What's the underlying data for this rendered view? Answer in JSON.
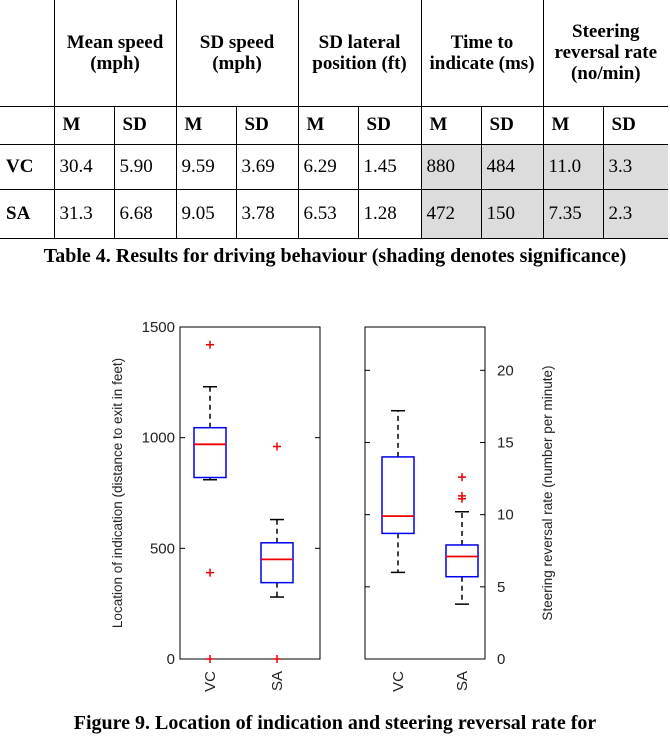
{
  "table": {
    "headers": [
      "Mean speed (mph)",
      "SD speed (mph)",
      "SD lateral position (ft)",
      "Time to indicate (ms)",
      "Steering reversal rate (no/min)"
    ],
    "subheaders": [
      "M",
      "SD",
      "M",
      "SD",
      "M",
      "SD",
      "M",
      "SD",
      "M",
      "SD"
    ],
    "rows": [
      {
        "label": "VC",
        "values": [
          "30.4",
          "5.90",
          "9.59",
          "3.69",
          "6.29",
          "1.45",
          "880",
          "484",
          "11.0",
          "3.3"
        ]
      },
      {
        "label": "SA",
        "values": [
          "31.3",
          "6.68",
          "9.05",
          "3.78",
          "6.53",
          "1.28",
          "472",
          "150",
          "7.35",
          "2.3"
        ]
      }
    ],
    "shaded_columns": [
      6,
      7,
      8,
      9
    ],
    "shade_color": "#dcdcdc",
    "caption": "Table 4. Results for driving behaviour (shading denotes significance)"
  },
  "chart_data": [
    {
      "type": "box",
      "ylabel": "Location of indication (distance to exit in feet)",
      "ylim": [
        0,
        1500
      ],
      "yticks": [
        0,
        500,
        1000,
        1500
      ],
      "categories": [
        "VC",
        "SA"
      ],
      "boxes": [
        {
          "category": "VC",
          "whisker_low": 810,
          "q1": 820,
          "median": 970,
          "q3": 1045,
          "whisker_high": 1230,
          "outliers": [
            1420,
            390,
            0
          ]
        },
        {
          "category": "SA",
          "whisker_low": 280,
          "q1": 345,
          "median": 450,
          "q3": 525,
          "whisker_high": 630,
          "outliers": [
            960,
            0
          ]
        }
      ]
    },
    {
      "type": "box",
      "ylabel": "Steering reversal rate (number per minute)",
      "ylim": [
        0,
        23
      ],
      "yticks": [
        0,
        5,
        10,
        15,
        20
      ],
      "categories": [
        "VC",
        "SA"
      ],
      "boxes": [
        {
          "category": "VC",
          "whisker_low": 6.0,
          "q1": 8.7,
          "median": 9.9,
          "q3": 14.0,
          "whisker_high": 17.2,
          "outliers": []
        },
        {
          "category": "SA",
          "whisker_low": 3.8,
          "q1": 5.7,
          "median": 7.1,
          "q3": 7.9,
          "whisker_high": 10.2,
          "outliers": [
            12.6,
            11.3,
            11.1
          ]
        }
      ]
    }
  ],
  "colors": {
    "box": "#0000ee",
    "median": "#ee0000",
    "outlier": "#ee0000",
    "whisker": "#000000"
  },
  "figure_caption": "Figure 9. Location of indication and steering reversal rate for"
}
